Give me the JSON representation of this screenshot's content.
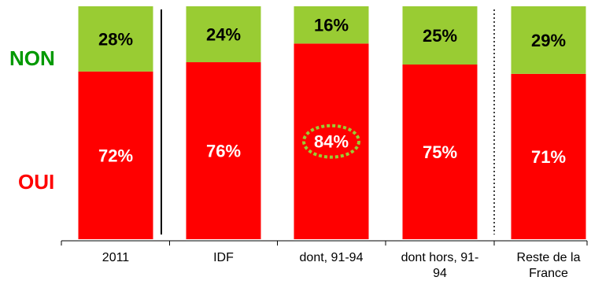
{
  "chart_data": {
    "type": "bar",
    "stacked": true,
    "normalized_to_100": true,
    "categories": [
      [
        "2011"
      ],
      [
        "IDF"
      ],
      [
        "dont, 91-94"
      ],
      [
        "dont hors, 91-",
        "94"
      ],
      [
        "Reste de la",
        "France"
      ]
    ],
    "series": [
      {
        "name": "OUI",
        "values": [
          72,
          76,
          84,
          75,
          71
        ],
        "labels": [
          "72%",
          "76%",
          "84%",
          "75%",
          "71%"
        ],
        "color": "#ff0000",
        "label_color": "#ffffff"
      },
      {
        "name": "NON",
        "values": [
          28,
          24,
          16,
          25,
          29
        ],
        "labels": [
          "28%",
          "24%",
          "16%",
          "25%",
          "29%"
        ],
        "color": "#99cc33",
        "label_color": "#000000"
      }
    ],
    "highlighted_label": {
      "series": "OUI",
      "category_index": 2,
      "outline_color": "#99cc33",
      "style": "dotted ellipse"
    },
    "separators": [
      {
        "after_category_index": 0,
        "style": "solid"
      },
      {
        "after_category_index": 3,
        "style": "dotted"
      }
    ],
    "legend_colors": {
      "OUI": "#ff0000",
      "NON": "#009900"
    },
    "ylim": [
      0,
      100
    ]
  }
}
